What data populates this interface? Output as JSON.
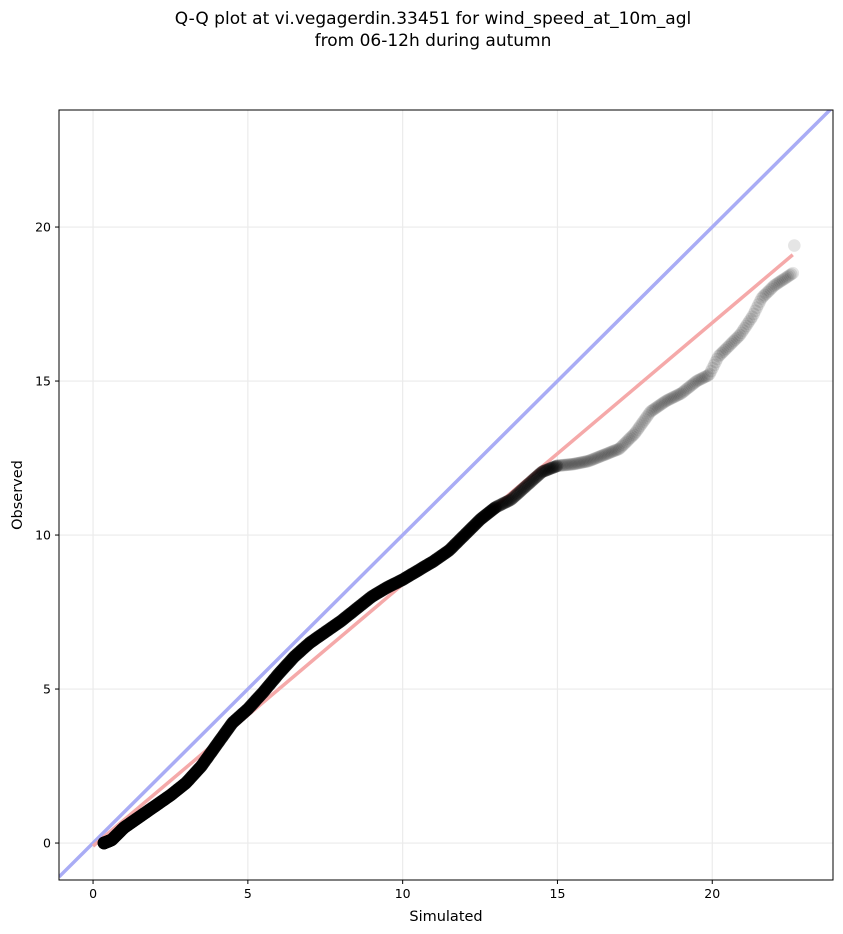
{
  "chart_data": {
    "type": "scatter",
    "title": "Q-Q plot at vi.vegagerdin.33451 for wind_speed_at_10m_agl",
    "subtitle": "from 06-12h during autumn",
    "xlabel": "Simulated",
    "ylabel": "Observed",
    "xlim": [
      -1.1,
      23.9
    ],
    "ylim": [
      -1.2,
      23.8
    ],
    "xticks": [
      0,
      5,
      10,
      15,
      20
    ],
    "yticks": [
      0,
      5,
      10,
      15,
      20
    ],
    "grid": true,
    "legend": "none",
    "colors": {
      "points": "#000000",
      "identity_line": "#a9acf5",
      "fit_line": "#f5a9a9",
      "grid": "#ebebeb"
    },
    "identity_line": {
      "x": [
        -1.1,
        23.9
      ],
      "y": [
        -1.1,
        23.9
      ]
    },
    "fit_line": {
      "x": [
        0.0,
        22.6
      ],
      "y": [
        -0.1,
        19.1
      ]
    },
    "quantile_curve": [
      [
        0.35,
        0.0
      ],
      [
        0.6,
        0.1
      ],
      [
        1.0,
        0.5
      ],
      [
        1.5,
        0.85
      ],
      [
        2.0,
        1.2
      ],
      [
        2.5,
        1.55
      ],
      [
        3.0,
        1.95
      ],
      [
        3.5,
        2.5
      ],
      [
        4.0,
        3.2
      ],
      [
        4.5,
        3.9
      ],
      [
        5.0,
        4.35
      ],
      [
        5.5,
        4.9
      ],
      [
        6.0,
        5.5
      ],
      [
        6.5,
        6.05
      ],
      [
        7.0,
        6.5
      ],
      [
        7.5,
        6.85
      ],
      [
        8.0,
        7.2
      ],
      [
        8.5,
        7.6
      ],
      [
        9.0,
        8.0
      ],
      [
        9.5,
        8.3
      ],
      [
        10.0,
        8.55
      ],
      [
        10.5,
        8.85
      ],
      [
        11.0,
        9.15
      ],
      [
        11.5,
        9.5
      ],
      [
        12.0,
        10.0
      ],
      [
        12.5,
        10.5
      ],
      [
        13.0,
        10.9
      ],
      [
        13.5,
        11.15
      ],
      [
        14.0,
        11.6
      ],
      [
        14.5,
        12.05
      ],
      [
        15.0,
        12.25
      ],
      [
        15.5,
        12.3
      ],
      [
        16.0,
        12.4
      ],
      [
        16.5,
        12.6
      ],
      [
        17.0,
        12.8
      ],
      [
        17.5,
        13.3
      ],
      [
        18.0,
        14.0
      ],
      [
        18.5,
        14.35
      ],
      [
        19.0,
        14.6
      ],
      [
        19.5,
        15.0
      ],
      [
        19.9,
        15.2
      ],
      [
        20.2,
        15.8
      ],
      [
        20.5,
        16.1
      ],
      [
        20.9,
        16.5
      ],
      [
        21.3,
        17.1
      ],
      [
        21.6,
        17.7
      ],
      [
        22.0,
        18.1
      ],
      [
        22.3,
        18.3
      ],
      [
        22.6,
        18.5
      ]
    ],
    "outliers": [
      [
        22.65,
        19.4
      ]
    ]
  }
}
